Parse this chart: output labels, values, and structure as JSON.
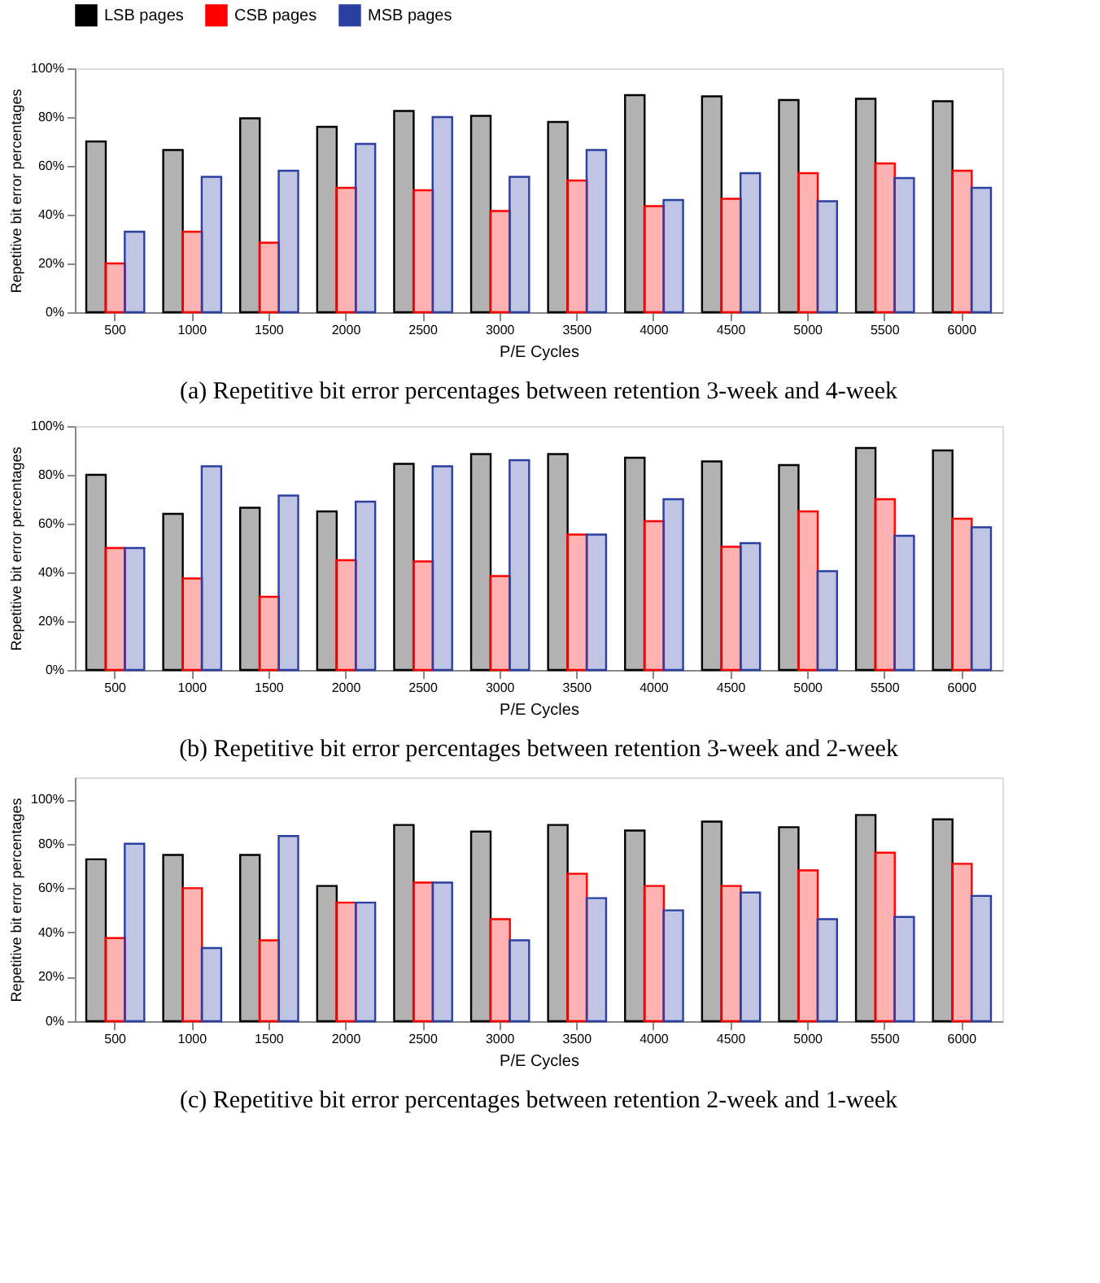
{
  "chart_data": [
    {
      "type": "bar",
      "categories": [
        "500",
        "1000",
        "1500",
        "2000",
        "2500",
        "3000",
        "3500",
        "4000",
        "4500",
        "5000",
        "5500",
        "6000"
      ],
      "xlabel": "P/E Cycles",
      "ylabel": "Repetitive bit error percentages",
      "ylim": [
        0,
        100
      ],
      "yticks": [
        {
          "value": 0,
          "label": "0%"
        },
        {
          "value": 20,
          "label": "20%"
        },
        {
          "value": 40,
          "label": "40%"
        },
        {
          "value": 60,
          "label": "60%"
        },
        {
          "value": 80,
          "label": "80%"
        },
        {
          "value": 100,
          "label": "100%"
        }
      ],
      "legend": "top",
      "grid": false,
      "annotations": [
        "(a) Repetitive bit error percentages between retention 3-week and 4-week"
      ],
      "series": [
        {
          "name": "LSB pages",
          "color": "#000000",
          "values": [
            70,
            66.5,
            79.5,
            76,
            82.5,
            80.5,
            78,
            89,
            88.5,
            87,
            87.5,
            86.5
          ]
        },
        {
          "name": "CSB pages",
          "color": "#ff0000",
          "values": [
            20,
            33,
            28.5,
            51,
            50,
            41.5,
            54,
            43.5,
            46.5,
            57,
            61,
            58
          ]
        },
        {
          "name": "MSB pages",
          "color": "#2b3fa0",
          "values": [
            33,
            55.5,
            58,
            69,
            80,
            55.5,
            66.5,
            46,
            57,
            45.5,
            55,
            51
          ]
        }
      ]
    },
    {
      "type": "bar",
      "categories": [
        "500",
        "1000",
        "1500",
        "2000",
        "2500",
        "3000",
        "3500",
        "4000",
        "4500",
        "5000",
        "5500",
        "6000"
      ],
      "xlabel": "P/E Cycles",
      "ylabel": "Repetitive bit error percentages",
      "ylim": [
        0,
        100
      ],
      "yticks": [
        {
          "value": 0,
          "label": "0%"
        },
        {
          "value": 20,
          "label": "20%"
        },
        {
          "value": 40,
          "label": "40%"
        },
        {
          "value": 60,
          "label": "60%"
        },
        {
          "value": 80,
          "label": "80%"
        },
        {
          "value": 100,
          "label": "100%"
        }
      ],
      "legend": "top",
      "grid": false,
      "annotations": [
        "(b) Repetitive bit error percentages between retention 3-week and 2-week"
      ],
      "series": [
        {
          "name": "LSB pages",
          "color": "#000000",
          "values": [
            80,
            64,
            66.5,
            65,
            84.5,
            88.5,
            88.5,
            87,
            85.5,
            84,
            91,
            90
          ]
        },
        {
          "name": "CSB pages",
          "color": "#ff0000",
          "values": [
            50,
            37.5,
            30,
            45,
            44.5,
            38.5,
            55.5,
            61,
            50.5,
            65,
            70,
            62
          ]
        },
        {
          "name": "MSB pages",
          "color": "#2b3fa0",
          "values": [
            50,
            83.5,
            71.5,
            69,
            83.5,
            86,
            55.5,
            70,
            52,
            40.5,
            55,
            58.5
          ]
        }
      ]
    },
    {
      "type": "bar",
      "categories": [
        "500",
        "1000",
        "1500",
        "2000",
        "2500",
        "3000",
        "3500",
        "4000",
        "4500",
        "5000",
        "5500",
        "6000"
      ],
      "xlabel": "P/E Cycles",
      "ylabel": "Repetitive bit error percentages",
      "ylim": [
        0,
        110
      ],
      "yticks": [
        {
          "value": 0,
          "label": "0%"
        },
        {
          "value": 20,
          "label": "20%"
        },
        {
          "value": 40,
          "label": "40%"
        },
        {
          "value": 60,
          "label": "60%"
        },
        {
          "value": 80,
          "label": "80%"
        },
        {
          "value": 100,
          "label": "100%"
        }
      ],
      "legend": "top",
      "grid": false,
      "annotations": [
        "(c) Repetitive bit error percentages between retention 2-week and 1-week"
      ],
      "series": [
        {
          "name": "LSB pages",
          "color": "#000000",
          "values": [
            73,
            75,
            75,
            61,
            88.5,
            85.5,
            88.5,
            86,
            90,
            87.5,
            93,
            91
          ]
        },
        {
          "name": "CSB pages",
          "color": "#ff0000",
          "values": [
            37.5,
            60,
            36.5,
            53.5,
            62.5,
            46,
            66.5,
            61,
            61,
            68,
            76,
            71
          ]
        },
        {
          "name": "MSB pages",
          "color": "#2b3fa0",
          "values": [
            80,
            33,
            83.5,
            53.5,
            62.5,
            36.5,
            55.5,
            50,
            58,
            46,
            47,
            56.5
          ]
        }
      ]
    }
  ]
}
